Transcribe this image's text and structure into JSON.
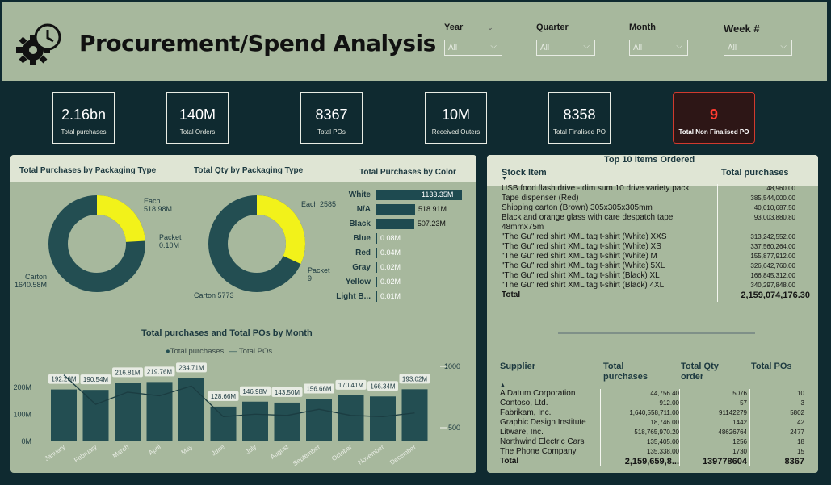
{
  "header": {
    "title": "Procurement/Spend Analysis",
    "slicers": [
      {
        "label": "Year",
        "value": "All"
      },
      {
        "label": "Quarter",
        "value": "All"
      },
      {
        "label": "Month",
        "value": "All"
      },
      {
        "label": "Week #",
        "value": "All"
      }
    ]
  },
  "kpis": [
    {
      "value": "2.16bn",
      "label": "Total purchases"
    },
    {
      "value": "140M",
      "label": "Total Orders"
    },
    {
      "value": "8367",
      "label": "Total POs"
    },
    {
      "value": "10M",
      "label": "Received Outers"
    },
    {
      "value": "8358",
      "label": "Total Finalised PO"
    },
    {
      "value": "9",
      "label": "Total Non Finalised PO"
    }
  ],
  "colors": {
    "dark_teal": "#234e52",
    "yellow": "#f2f21a",
    "panel": "#a7b89d",
    "alert": "#ff3b30"
  },
  "donut1": {
    "title": "Total Purchases by Packaging Type",
    "labels": {
      "each": "Each",
      "each_val": "518.98M",
      "packet": "Packet",
      "packet_val": "0.10M",
      "carton": "Carton",
      "carton_val": "1640.58M"
    }
  },
  "donut2": {
    "title": "Total Qty by Packaging Type",
    "labels": {
      "each": "Each 2585",
      "packet": "Packet",
      "packet_val": "9",
      "carton": "Carton 5773"
    }
  },
  "color_bars": {
    "title": "Total Purchases by Color",
    "items": [
      {
        "label": "White",
        "value": "1133.35M"
      },
      {
        "label": "N/A",
        "value": "518.91M"
      },
      {
        "label": "Black",
        "value": "507.23M"
      },
      {
        "label": "Blue",
        "value": "0.08M"
      },
      {
        "label": "Red",
        "value": "0.04M"
      },
      {
        "label": "Gray",
        "value": "0.02M"
      },
      {
        "label": "Yellow",
        "value": "0.02M"
      },
      {
        "label": "Light B...",
        "value": "0.01M"
      }
    ]
  },
  "chart_data": {
    "type": "bar",
    "title": "Total purchases and Total POs by Month",
    "legend": [
      "Total purchases",
      "Total POs"
    ],
    "categories": [
      "January",
      "February",
      "March",
      "April",
      "May",
      "June",
      "July",
      "August",
      "September",
      "October",
      "November",
      "December"
    ],
    "series": [
      {
        "name": "Total purchases",
        "values": [
          192.26,
          190.54,
          216.81,
          219.76,
          234.71,
          128.66,
          146.98,
          143.5,
          156.66,
          170.41,
          166.34,
          193.02
        ],
        "labels": [
          "192.26M",
          "190.54M",
          "216.81M",
          "219.76M",
          "234.71M",
          "128.66M",
          "146.98M",
          "143.50M",
          "156.66M",
          "170.41M",
          "166.34M",
          "193.02M"
        ]
      },
      {
        "name": "Total POs",
        "values": [
          930,
          690,
          790,
          760,
          840,
          590,
          610,
          600,
          650,
          600,
          590,
          620
        ]
      }
    ],
    "y_ticks": [
      "200M",
      "100M",
      "0M"
    ],
    "y2_ticks": [
      "1000",
      "500"
    ]
  },
  "top_items": {
    "title": "Top 10 Items Ordered",
    "col1": "Stock Item",
    "col2": "Total purchases",
    "rows": [
      {
        "item": "USB food flash drive - dim sum 10 drive variety pack",
        "value": "48,960.00"
      },
      {
        "item": "Tape dispenser (Red)",
        "value": "385,544,000.00"
      },
      {
        "item": "Shipping carton (Brown) 305x305x305mm",
        "value": "40,010,687.50"
      },
      {
        "item": "Black and orange glass with care despatch tape",
        "value": "93,003,880.80"
      },
      {
        "item": "48mmx75m",
        "value": ""
      },
      {
        "item": "\"The Gu\" red shirt XML tag t-shirt (White) XXS",
        "value": "313,242,552.00"
      },
      {
        "item": "\"The Gu\" red shirt XML tag t-shirt (White) XS",
        "value": "337,560,264.00"
      },
      {
        "item": "\"The Gu\" red shirt XML tag t-shirt (White) M",
        "value": "155,877,912.00"
      },
      {
        "item": "\"The Gu\" red shirt XML tag t-shirt (White) 5XL",
        "value": "326,642,760.00"
      },
      {
        "item": "\"The Gu\" red shirt XML tag t-shirt (Black) XL",
        "value": "166,845,312.00"
      },
      {
        "item": "\"The Gu\" red shirt XML tag t-shirt (Black) 4XL",
        "value": "340,297,848.00"
      }
    ],
    "total_label": "Total",
    "total_value": "2,159,074,176.30"
  },
  "suppliers": {
    "headers": [
      "Supplier",
      "Total purchases",
      "Total Qty order",
      "Total POs"
    ],
    "rows": [
      [
        "A Datum Corporation",
        "44,756.40",
        "5076",
        "10"
      ],
      [
        "Contoso, Ltd.",
        "912.00",
        "57",
        "3"
      ],
      [
        "Fabrikam, Inc.",
        "1,640,558,711.00",
        "91142279",
        "5802"
      ],
      [
        "Graphic Design Institute",
        "18,746.00",
        "1442",
        "42"
      ],
      [
        "Litware, Inc.",
        "518,765,970.20",
        "48626764",
        "2477"
      ],
      [
        "Northwind Electric Cars",
        "135,405.00",
        "1256",
        "18"
      ],
      [
        "The Phone Company",
        "135,338.00",
        "1730",
        "15"
      ]
    ],
    "total": [
      "Total",
      "2,159,659,8...",
      "139778604",
      "8367"
    ]
  }
}
